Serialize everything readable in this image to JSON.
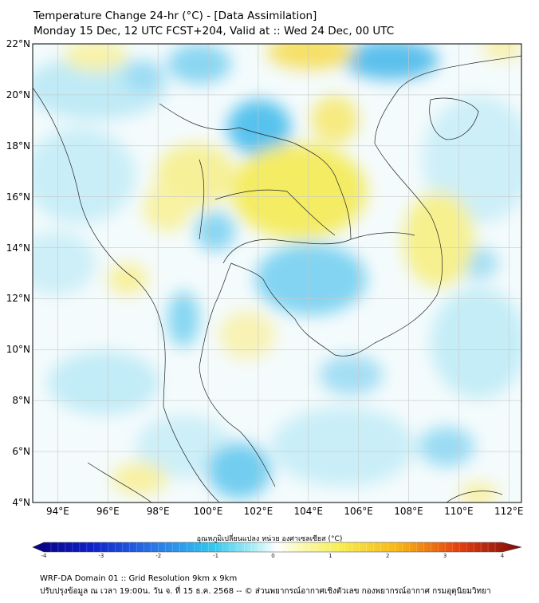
{
  "title": {
    "line1": "Temperature Change 24-hr (°C) - [Data Assimilation]",
    "line2": "Monday 15 Dec, 12 UTC FCST+204, Valid at :: Wed 24 Dec, 00 UTC"
  },
  "map": {
    "lat_labels": [
      "22°N",
      "20°N",
      "18°N",
      "16°N",
      "14°N",
      "12°N",
      "10°N",
      "8°N",
      "6°N",
      "4°N"
    ],
    "lon_labels": [
      "94°E",
      "96°E",
      "98°E",
      "100°E",
      "102°E",
      "104°E",
      "106°E",
      "108°E",
      "110°E",
      "112°E"
    ],
    "lat_range": [
      4,
      22
    ],
    "lon_range": [
      93,
      112.5
    ]
  },
  "colorbar": {
    "title": "อุณหภูมิเปลี่ยนแปลง หน่วย องศาเซลเซียส (°C)",
    "ticks": [
      "-4",
      "-3",
      "-2",
      "-1",
      "0",
      "1",
      "2",
      "3",
      "4"
    ],
    "range": [
      -4,
      4
    ]
  },
  "footer": {
    "line1": "WRF-DA Domain 01 :: Grid Resolution 9km x 9km",
    "line2": "ปรับปรุงข้อมูล ณ เวลา 19:00น. วัน จ. ที่ 15 ธ.ค. 2568 -- © ส่วนพยากรณ์อากาศเชิงตัวเลข กองพยากรณ์อากาศ กรมอุตุนิยมวิทยา"
  }
}
